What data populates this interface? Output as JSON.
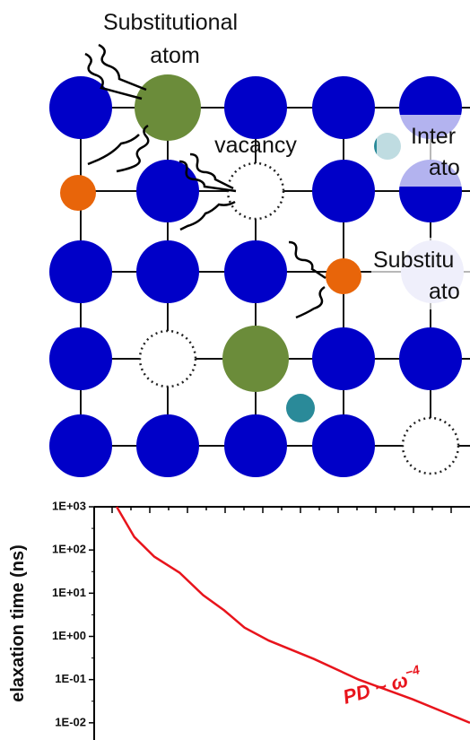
{
  "diagram": {
    "labels": [
      "Substitutional",
      "atom",
      "vacancy",
      "Inter",
      "ato",
      "Substitu",
      "ato"
    ]
  },
  "chart_data": {
    "type": "line",
    "y_label": "elaxation time (ns)",
    "annotation": "PD ~ ω",
    "annotation_exponent": "−4",
    "x": [
      0.6,
      1.07,
      1.6,
      2.27,
      2.9,
      3.46,
      4.0,
      4.65,
      5.85,
      7.04,
      8.47,
      10
    ],
    "values": [
      1000,
      200,
      70,
      30,
      9,
      4,
      1.6,
      0.8,
      0.3,
      0.1,
      0.035,
      0.01
    ],
    "color": "#e8141c",
    "xlim": [
      0,
      10
    ],
    "ylim": [
      0.004,
      1000
    ],
    "ylog": true,
    "yticks": [
      {
        "value": 1000,
        "label": "1E+03"
      },
      {
        "value": 100,
        "label": "1E+02"
      },
      {
        "value": 10,
        "label": "1E+01"
      },
      {
        "value": 1,
        "label": "1E+00"
      },
      {
        "value": 0.1,
        "label": "1E-01"
      },
      {
        "value": 0.01,
        "label": "1E-02"
      }
    ]
  }
}
